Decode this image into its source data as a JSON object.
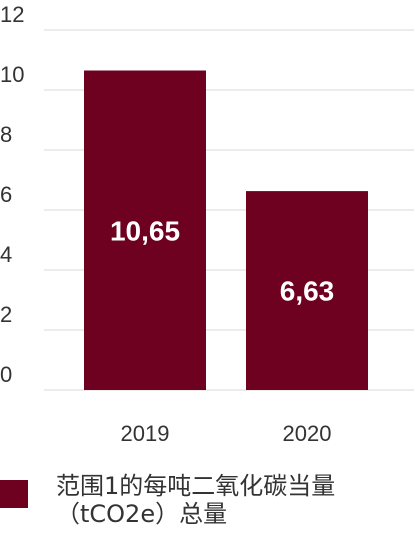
{
  "chart_data": {
    "type": "bar",
    "categories": [
      "2019",
      "2020"
    ],
    "values": [
      10.65,
      6.63
    ],
    "value_labels": [
      "10,65",
      "6,63"
    ],
    "ylim": [
      0,
      12
    ],
    "yticks": [
      "0",
      "2",
      "4",
      "6",
      "8",
      "10",
      "12"
    ],
    "grid": true,
    "bar_color": "#6e0020",
    "legend": {
      "placement": "bottom",
      "label": "范围1的每吨二氧化碳当量（tCO2e）总量"
    }
  }
}
